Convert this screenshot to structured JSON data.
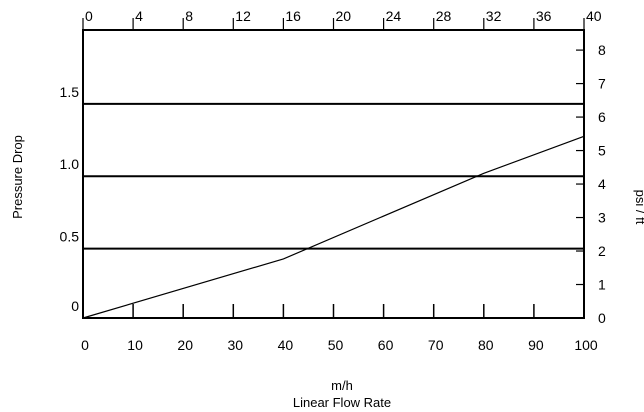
{
  "chart_data": {
    "type": "line",
    "x": [
      0,
      40,
      80,
      100
    ],
    "series": [
      {
        "values": [
          0.0,
          0.4,
          0.98,
          1.23
        ]
      }
    ],
    "x_ticks": [
      "0",
      "10",
      "20",
      "30",
      "40",
      "50",
      "60",
      "70",
      "80",
      "90",
      "100"
    ],
    "x_top_ticks": [
      "0",
      "4",
      "8",
      "12",
      "16",
      "20",
      "24",
      "28",
      "32",
      "36",
      "40"
    ],
    "y_ticks": [
      "0",
      "0.5",
      "1.0",
      "1.5"
    ],
    "y_right_ticks": [
      "0",
      "1",
      "2",
      "3",
      "4",
      "5",
      "6",
      "7",
      "8"
    ],
    "reference_lines_y": [
      0.47,
      0.96,
      1.45
    ],
    "xlabel": "m/h",
    "xlabel2": "Linear Flow Rate",
    "ylabel": "Pressure Drop",
    "ylabel_right": "psi / ft",
    "xlim": [
      0,
      100
    ],
    "ylim": [
      0,
      1.95
    ],
    "x_top_lim": [
      0,
      40
    ],
    "y_right_lim": [
      0,
      8.6
    ],
    "line_color": "#000000"
  }
}
